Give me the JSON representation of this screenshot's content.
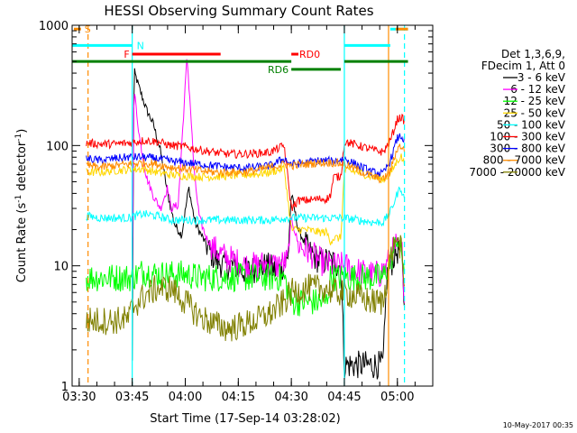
{
  "chart_data": {
    "type": "line",
    "title": "HESSI Observing Summary Count Rates",
    "xlabel": "Start Time (17-Sep-14 03:28:02)",
    "ylabel_main": "Count Rate (s",
    "ylabel_sup1": "-1",
    "ylabel_mid": " detector",
    "ylabel_sup2": "-1",
    "ylabel_end": ")",
    "yscale": "log",
    "ylim": [
      1,
      1000
    ],
    "xlim_minutes": [
      0,
      102
    ],
    "x_ticks": [
      {
        "label": "03:30",
        "min": 2
      },
      {
        "label": "03:45",
        "min": 17
      },
      {
        "label": "04:00",
        "min": 32
      },
      {
        "label": "04:15",
        "min": 47
      },
      {
        "label": "04:30",
        "min": 62
      },
      {
        "label": "04:45",
        "min": 77
      },
      {
        "label": "05:00",
        "min": 92
      }
    ],
    "y_ticks": [
      {
        "label": "1",
        "value": 1
      },
      {
        "label": "10",
        "value": 10
      },
      {
        "label": "100",
        "value": 100
      },
      {
        "label": "1000",
        "value": 1000
      }
    ],
    "legend": {
      "header1": "Det 1,3,6,9,",
      "header2": "FDecim 1, Att 0",
      "placement": "right"
    },
    "series": [
      {
        "name": "3 - 6 keV",
        "color": "#000000",
        "points": [
          [
            17,
            1.5
          ],
          [
            17.5,
            420
          ],
          [
            19,
            300
          ],
          [
            21,
            200
          ],
          [
            23,
            150
          ],
          [
            25,
            90
          ],
          [
            27,
            40
          ],
          [
            29,
            22
          ],
          [
            31,
            18
          ],
          [
            33,
            45
          ],
          [
            34,
            30
          ],
          [
            35,
            22
          ],
          [
            37,
            17
          ],
          [
            39,
            13
          ],
          [
            41,
            11
          ],
          [
            43,
            10
          ],
          [
            46,
            10
          ],
          [
            49,
            9
          ],
          [
            52,
            9.5
          ],
          [
            55,
            10
          ],
          [
            58,
            9
          ],
          [
            61,
            11
          ],
          [
            62,
            40
          ],
          [
            64,
            20
          ],
          [
            67,
            13
          ],
          [
            70,
            11
          ],
          [
            73,
            11
          ],
          [
            76,
            10
          ],
          [
            77,
            1.5
          ],
          [
            81,
            1.5
          ],
          [
            88,
            1.5
          ],
          [
            89,
            8
          ],
          [
            91,
            12
          ],
          [
            92.5,
            14
          ],
          [
            93.5,
            10
          ],
          [
            94,
            4
          ]
        ]
      },
      {
        "name": "6 - 12 keV",
        "color": "#ff00ff",
        "points": [
          [
            17,
            8
          ],
          [
            17.5,
            300
          ],
          [
            19,
            120
          ],
          [
            21,
            55
          ],
          [
            23,
            38
          ],
          [
            25,
            30
          ],
          [
            27,
            45
          ],
          [
            28,
            30
          ],
          [
            30,
            32
          ],
          [
            31,
            100
          ],
          [
            32.5,
            550
          ],
          [
            33.5,
            200
          ],
          [
            34.5,
            60
          ],
          [
            36,
            25
          ],
          [
            38,
            17
          ],
          [
            40,
            14
          ],
          [
            43,
            12
          ],
          [
            46,
            11
          ],
          [
            49,
            10
          ],
          [
            52,
            10
          ],
          [
            55,
            10.5
          ],
          [
            58,
            10
          ],
          [
            61,
            11
          ],
          [
            62,
            25
          ],
          [
            64,
            15
          ],
          [
            67,
            13
          ],
          [
            70,
            11
          ],
          [
            73,
            10
          ],
          [
            76,
            10
          ],
          [
            77,
            10
          ],
          [
            81,
            9
          ],
          [
            84,
            8.5
          ],
          [
            87,
            8.5
          ],
          [
            89,
            10
          ],
          [
            91,
            14
          ],
          [
            92.5,
            16
          ],
          [
            93.5,
            12
          ],
          [
            94,
            5
          ]
        ]
      },
      {
        "name": "12 - 25 keV",
        "color": "#00ff00",
        "points": [
          [
            4,
            8
          ],
          [
            8,
            8
          ],
          [
            12,
            8
          ],
          [
            16,
            8
          ],
          [
            17,
            8
          ],
          [
            20,
            9
          ],
          [
            24,
            8.5
          ],
          [
            28,
            8.5
          ],
          [
            32,
            8.5
          ],
          [
            36,
            8
          ],
          [
            40,
            8
          ],
          [
            44,
            8
          ],
          [
            48,
            8
          ],
          [
            52,
            8
          ],
          [
            56,
            8
          ],
          [
            60,
            8
          ],
          [
            62,
            5
          ],
          [
            66,
            5
          ],
          [
            70,
            5
          ],
          [
            72,
            5
          ],
          [
            73,
            8
          ],
          [
            77,
            8
          ],
          [
            81,
            8
          ],
          [
            85,
            8
          ],
          [
            88,
            8
          ],
          [
            90,
            11
          ],
          [
            92,
            16
          ],
          [
            93.5,
            12
          ],
          [
            94,
            9
          ]
        ]
      },
      {
        "name": "25 - 50 keV",
        "color": "#ffd700",
        "points": [
          [
            4,
            60
          ],
          [
            8,
            60
          ],
          [
            12,
            62
          ],
          [
            16,
            63
          ],
          [
            20,
            64
          ],
          [
            24,
            60
          ],
          [
            28,
            57
          ],
          [
            32,
            56
          ],
          [
            36,
            55
          ],
          [
            40,
            55
          ],
          [
            44,
            56
          ],
          [
            48,
            57
          ],
          [
            52,
            58
          ],
          [
            56,
            60
          ],
          [
            60,
            65
          ],
          [
            62,
            20
          ],
          [
            66,
            20
          ],
          [
            70,
            19
          ],
          [
            72,
            19
          ],
          [
            73,
            16
          ],
          [
            74,
            17
          ],
          [
            76,
            17
          ],
          [
            77,
            62
          ],
          [
            81,
            60
          ],
          [
            85,
            55
          ],
          [
            88,
            52
          ],
          [
            90,
            58
          ],
          [
            92,
            75
          ],
          [
            93,
            82
          ],
          [
            94,
            70
          ]
        ]
      },
      {
        "name": "50 - 100 keV",
        "color": "#00ffff",
        "points": [
          [
            4,
            26
          ],
          [
            8,
            25
          ],
          [
            12,
            25
          ],
          [
            16,
            25
          ],
          [
            20,
            27
          ],
          [
            24,
            26
          ],
          [
            28,
            24
          ],
          [
            32,
            24
          ],
          [
            36,
            24
          ],
          [
            40,
            24
          ],
          [
            44,
            24
          ],
          [
            48,
            24
          ],
          [
            52,
            24
          ],
          [
            56,
            24
          ],
          [
            60,
            25
          ],
          [
            62,
            25
          ],
          [
            66,
            25
          ],
          [
            70,
            25
          ],
          [
            74,
            25
          ],
          [
            77,
            25
          ],
          [
            81,
            24
          ],
          [
            85,
            23
          ],
          [
            88,
            23
          ],
          [
            90,
            28
          ],
          [
            92,
            40
          ],
          [
            93,
            45
          ],
          [
            94,
            35
          ]
        ]
      },
      {
        "name": "100 - 300 keV",
        "color": "#ff0000",
        "points": [
          [
            4,
            105
          ],
          [
            8,
            103
          ],
          [
            12,
            103
          ],
          [
            16,
            105
          ],
          [
            20,
            110
          ],
          [
            24,
            108
          ],
          [
            28,
            100
          ],
          [
            32,
            98
          ],
          [
            36,
            92
          ],
          [
            40,
            88
          ],
          [
            44,
            85
          ],
          [
            48,
            85
          ],
          [
            52,
            86
          ],
          [
            56,
            88
          ],
          [
            60,
            100
          ],
          [
            62,
            30
          ],
          [
            64,
            35
          ],
          [
            66,
            35
          ],
          [
            70,
            36
          ],
          [
            72,
            36
          ],
          [
            73,
            38
          ],
          [
            74,
            55
          ],
          [
            76,
            55
          ],
          [
            77,
            108
          ],
          [
            81,
            100
          ],
          [
            85,
            92
          ],
          [
            88,
            88
          ],
          [
            90,
            110
          ],
          [
            92,
            165
          ],
          [
            93,
            172
          ],
          [
            94,
            160
          ]
        ]
      },
      {
        "name": "300 - 800 keV",
        "color": "#0000ff",
        "points": [
          [
            4,
            78
          ],
          [
            8,
            75
          ],
          [
            12,
            78
          ],
          [
            16,
            80
          ],
          [
            20,
            80
          ],
          [
            24,
            78
          ],
          [
            28,
            74
          ],
          [
            32,
            72
          ],
          [
            36,
            70
          ],
          [
            40,
            68
          ],
          [
            44,
            66
          ],
          [
            48,
            65
          ],
          [
            52,
            66
          ],
          [
            56,
            68
          ],
          [
            60,
            78
          ],
          [
            62,
            70
          ],
          [
            66,
            72
          ],
          [
            70,
            75
          ],
          [
            74,
            74
          ],
          [
            77,
            78
          ],
          [
            81,
            68
          ],
          [
            85,
            60
          ],
          [
            88,
            58
          ],
          [
            90,
            75
          ],
          [
            92,
            115
          ],
          [
            93,
            120
          ],
          [
            94,
            110
          ]
        ]
      },
      {
        "name": "800 - 7000 keV",
        "color": "#ff8c00",
        "points": [
          [
            4,
            68
          ],
          [
            8,
            66
          ],
          [
            12,
            68
          ],
          [
            16,
            70
          ],
          [
            20,
            72
          ],
          [
            24,
            70
          ],
          [
            28,
            66
          ],
          [
            32,
            64
          ],
          [
            36,
            62
          ],
          [
            40,
            60
          ],
          [
            44,
            60
          ],
          [
            48,
            60
          ],
          [
            52,
            62
          ],
          [
            56,
            66
          ],
          [
            60,
            70
          ],
          [
            62,
            68
          ],
          [
            66,
            70
          ],
          [
            70,
            72
          ],
          [
            74,
            72
          ],
          [
            77,
            70
          ],
          [
            81,
            62
          ],
          [
            85,
            55
          ],
          [
            88,
            52
          ],
          [
            90,
            62
          ],
          [
            92,
            95
          ],
          [
            93,
            100
          ],
          [
            94,
            90
          ]
        ]
      },
      {
        "name": "7000 - 20000 keV",
        "color": "#808000",
        "points": [
          [
            4,
            3.5
          ],
          [
            8,
            3.5
          ],
          [
            12,
            3.5
          ],
          [
            16,
            3.6
          ],
          [
            17,
            4.5
          ],
          [
            20,
            5.5
          ],
          [
            24,
            6.5
          ],
          [
            28,
            6.5
          ],
          [
            32,
            5
          ],
          [
            36,
            3.8
          ],
          [
            40,
            3.3
          ],
          [
            44,
            3
          ],
          [
            48,
            3.2
          ],
          [
            52,
            3.5
          ],
          [
            56,
            4
          ],
          [
            60,
            5
          ],
          [
            62,
            6
          ],
          [
            66,
            6.5
          ],
          [
            70,
            6.5
          ],
          [
            72,
            6.5
          ],
          [
            74,
            6
          ],
          [
            77,
            6
          ],
          [
            81,
            5.5
          ],
          [
            85,
            5
          ],
          [
            88,
            5
          ],
          [
            89,
            8
          ],
          [
            91,
            15
          ],
          [
            92,
            17
          ],
          [
            93,
            14
          ],
          [
            94,
            6
          ]
        ]
      }
    ],
    "vertical_markers": [
      {
        "min": 4.5,
        "color": "#ff8c00",
        "style": "dashed"
      },
      {
        "min": 17,
        "color": "#00ffff",
        "style": "solid"
      },
      {
        "min": 77,
        "color": "#00ffff",
        "style": "solid"
      },
      {
        "min": 89.5,
        "color": "#ff8c00",
        "style": "solid"
      },
      {
        "min": 94,
        "color": "#00ffff",
        "style": "dashed"
      }
    ],
    "flags": [
      {
        "label": "S",
        "color": "#ff8c00",
        "y": 930,
        "segments": [
          [
            0.5,
            2.5
          ]
        ],
        "label_side": "right"
      },
      {
        "label": "N",
        "color": "#00ffff",
        "y": 680,
        "segments": [
          [
            0,
            17
          ],
          [
            77,
            90
          ]
        ],
        "label_side": "right_of_first_end"
      },
      {
        "label": "F",
        "color": "#ff0000",
        "y": 575,
        "segments": [
          [
            17,
            42
          ],
          [
            62,
            64
          ]
        ],
        "label_side": "left"
      },
      {
        "label": "RD0",
        "color": "#ff0000",
        "y": 575,
        "segments": [],
        "label_side": "at",
        "label_min": 64
      },
      {
        "label": "",
        "color": "#00ffff",
        "y": 930,
        "segments": [
          [
            90,
            95
          ]
        ],
        "label_side": "none"
      },
      {
        "label": "",
        "color": "#ff8c00",
        "y": 930,
        "segments": [
          [
            91.5,
            95
          ]
        ],
        "label_side": "none"
      },
      {
        "label": "",
        "color": "#008000",
        "y": 500,
        "segments": [
          [
            0,
            62
          ],
          [
            77,
            95
          ]
        ],
        "label_side": "none"
      },
      {
        "label": "RD6",
        "color": "#008000",
        "y": 430,
        "segments": [
          [
            62,
            76
          ]
        ],
        "label_side": "left"
      }
    ],
    "grid": false
  },
  "footer_stamp": "10-May-2017 00:35"
}
